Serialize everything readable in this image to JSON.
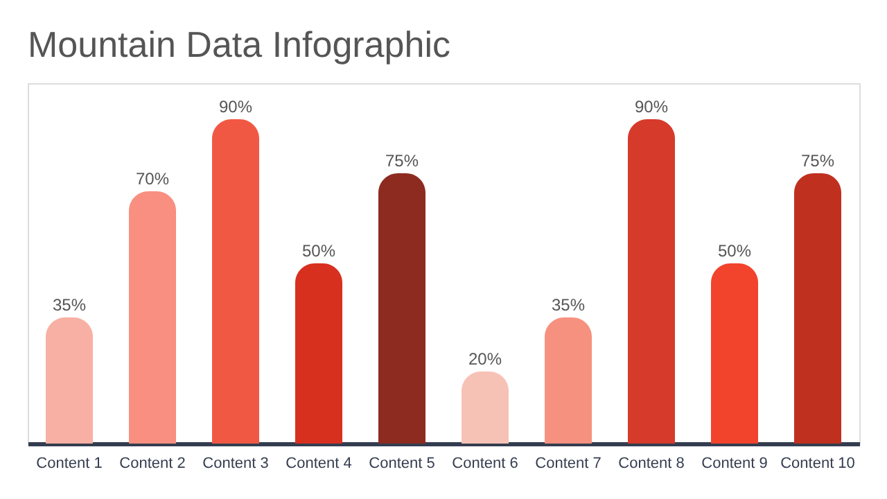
{
  "chart_data": {
    "type": "bar",
    "title": "Mountain Data Infographic",
    "categories": [
      "Content 1",
      "Content 2",
      "Content 3",
      "Content 4",
      "Content 5",
      "Content 6",
      "Content 7",
      "Content 8",
      "Content 9",
      "Content 10"
    ],
    "values": [
      35,
      70,
      90,
      50,
      75,
      20,
      35,
      90,
      50,
      75
    ],
    "value_labels": [
      "35%",
      "70%",
      "90%",
      "50%",
      "75%",
      "20%",
      "35%",
      "90%",
      "50%",
      "75%"
    ],
    "colors": [
      "#f8b0a4",
      "#f88f80",
      "#f15843",
      "#d8301f",
      "#8e2b20",
      "#f7c2b6",
      "#f7917f",
      "#d63a2b",
      "#f2432c",
      "#c0301f"
    ],
    "ylim": [
      0,
      100
    ],
    "tick_labels": "x",
    "grid": false
  }
}
